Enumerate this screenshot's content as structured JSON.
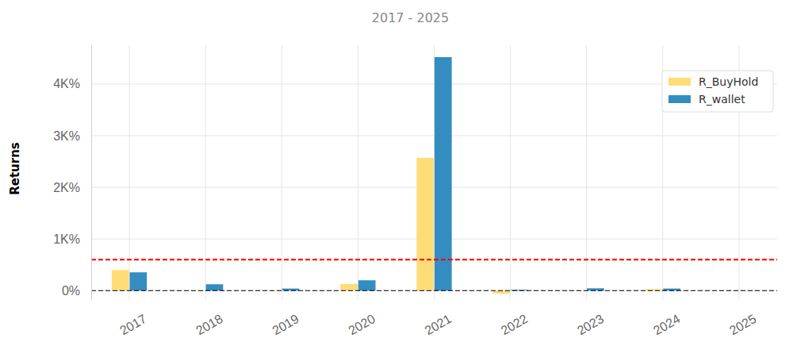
{
  "chart_data": {
    "type": "bar",
    "subtitle": "2017 - 2025",
    "y_label": "Returns",
    "categories": [
      "2017",
      "2018",
      "2019",
      "2020",
      "2021",
      "2022",
      "2023",
      "2024",
      "2025"
    ],
    "series": [
      {
        "name": "R_BuyHold",
        "color": "#fedd78",
        "values": [
          400,
          -10,
          5,
          130,
          2570,
          -60,
          5,
          30,
          3
        ]
      },
      {
        "name": "R_wallet",
        "color": "#348dc1",
        "values": [
          354,
          123,
          40,
          200,
          4520,
          15,
          45,
          40,
          2
        ]
      }
    ],
    "ylim": [
      -180,
      4750
    ],
    "yticks": [
      {
        "value": 0,
        "label": "0%"
      },
      {
        "value": 1000,
        "label": "1K%"
      },
      {
        "value": 2000,
        "label": "2K%"
      },
      {
        "value": 3000,
        "label": "3K%"
      },
      {
        "value": 4000,
        "label": "4K%"
      }
    ],
    "hlines": [
      {
        "value": 0,
        "color": "#000000",
        "line_style": "dashed"
      },
      {
        "value": 600,
        "color": "#ff0000",
        "line_style": "dashed"
      }
    ],
    "grid": true,
    "legend": "upper right"
  }
}
